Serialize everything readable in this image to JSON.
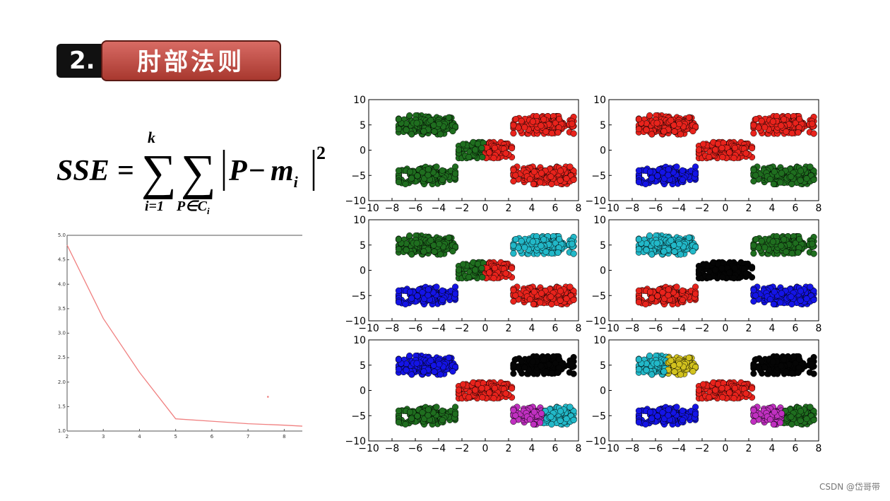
{
  "header": {
    "number": "2.",
    "title": "肘部法则"
  },
  "formula": {
    "lhs": "SSE",
    "equals": "=",
    "sum_top": "k",
    "sum_bottom_1": "i=1",
    "sum_bottom_2": "P∈C",
    "sum_bottom_2_sub": "i",
    "body_P": "P",
    "body_minus": "−",
    "body_m": "m",
    "body_m_sub": "i",
    "exponent": "2"
  },
  "watermark": "CSDN @岱哥带",
  "colors": {
    "red": "#e8231c",
    "green": "#1f6e1f",
    "blue": "#1414e6",
    "cyan": "#22b8c8",
    "black": "#050505",
    "magenta": "#c030c0",
    "yellow": "#d2c21e",
    "elbow_line": "#f08080"
  },
  "chart_data": [
    {
      "type": "line",
      "x": [
        2,
        3,
        4,
        5,
        6,
        7,
        8,
        8.5
      ],
      "series": [
        {
          "values": [
            4.8,
            3.3,
            2.2,
            1.25,
            1.2,
            1.15,
            1.12,
            1.1
          ]
        }
      ],
      "outlier_point": [
        7.55,
        1.7
      ],
      "xlim": [
        2,
        8.5
      ],
      "ylim": [
        1.0,
        5.0
      ],
      "xticks": [
        "2",
        "3",
        "4",
        "5",
        "6",
        "7",
        "8"
      ],
      "yticks": [
        "1.0",
        "1.5",
        "2.0",
        "2.5",
        "3.0",
        "3.5",
        "4.0",
        "4.5",
        "5.0"
      ],
      "grid": false
    },
    {
      "type": "scatter",
      "subplots": 6,
      "xlim": [
        -10,
        8
      ],
      "ylim": [
        -10,
        10
      ],
      "xticks": [
        "−10",
        "−8",
        "−6",
        "−4",
        "−2",
        "0",
        "2",
        "4",
        "6",
        "8"
      ],
      "yticks": [
        "10",
        "5",
        "0",
        "−5",
        "−10"
      ],
      "blobs": [
        {
          "center": [
            -5,
            5
          ],
          "spread": [
            1.6,
            1.3
          ]
        },
        {
          "center": [
            5,
            5
          ],
          "spread": [
            1.7,
            1.2
          ]
        },
        {
          "center": [
            0,
            0
          ],
          "spread": [
            1.5,
            1.1
          ]
        },
        {
          "center": [
            -5,
            -5
          ],
          "spread": [
            1.6,
            1.2
          ]
        },
        {
          "center": [
            5,
            -5
          ],
          "spread": [
            1.7,
            1.2
          ]
        }
      ],
      "clusterings": [
        {
          "k": 2,
          "labels": [
            "green",
            "red",
            "split-x:green|red",
            "green",
            "red"
          ]
        },
        {
          "k": 3,
          "labels": [
            "red",
            "red",
            "red",
            "blue",
            "green"
          ]
        },
        {
          "k": 4,
          "labels": [
            "green",
            "cyan",
            "split-x:green|red",
            "blue",
            "red"
          ]
        },
        {
          "k": 5,
          "labels": [
            "cyan",
            "green",
            "black",
            "red",
            "blue"
          ]
        },
        {
          "k": 6,
          "labels": [
            "blue",
            "black",
            "red",
            "green",
            "split-x:magenta|cyan"
          ]
        },
        {
          "k": 7,
          "labels": [
            "split-x:cyan|yellow",
            "black",
            "red",
            "blue",
            "split-x:magenta|green"
          ]
        }
      ]
    }
  ]
}
